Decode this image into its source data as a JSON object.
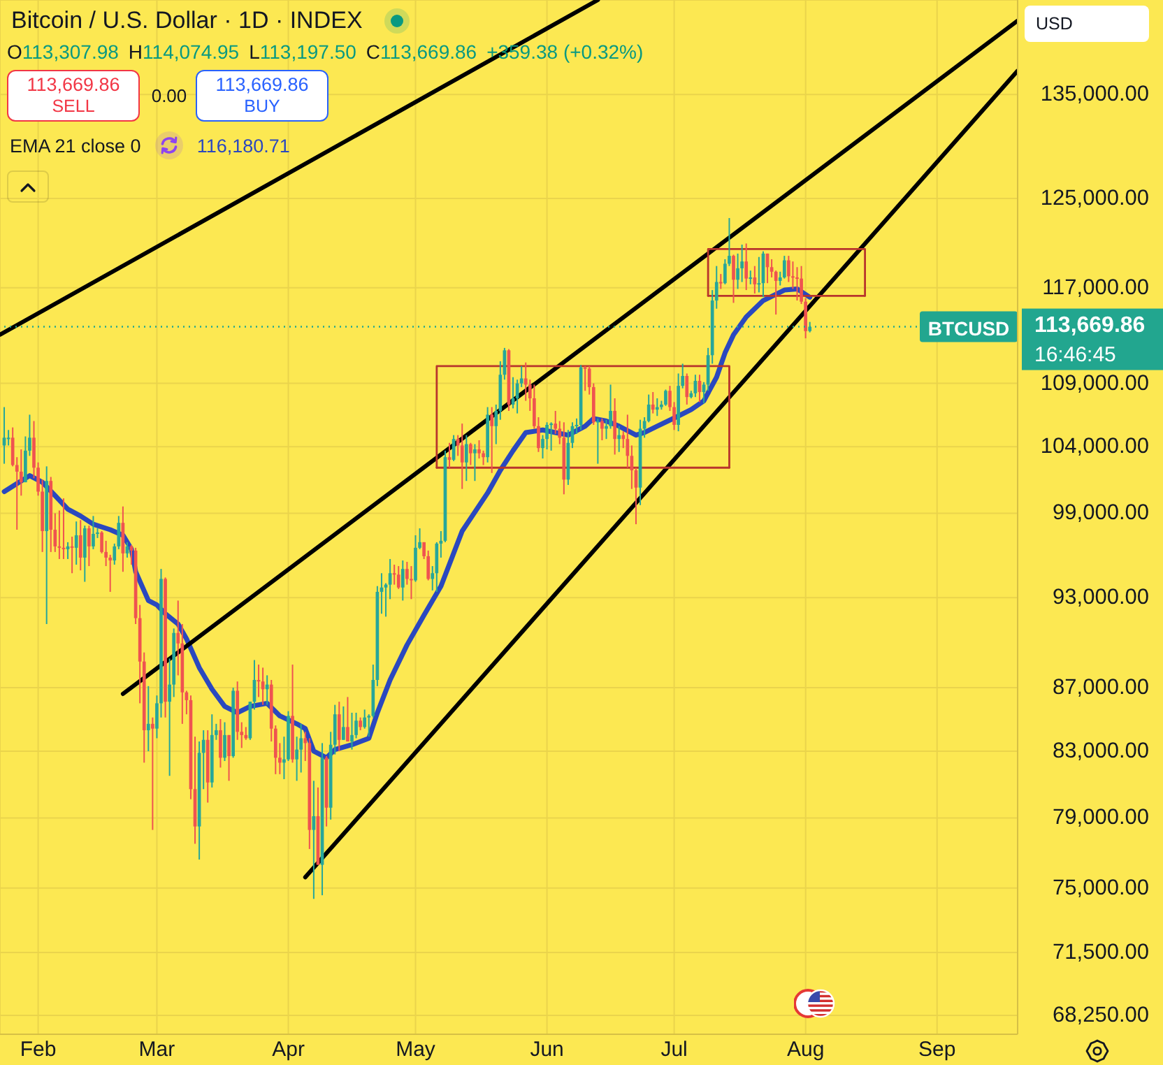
{
  "chart_data": {
    "type": "candlestick",
    "title": "Bitcoin / U.S. Dollar · 1D · INDEX",
    "x": [
      "--01-24",
      "--01-25",
      "--01-26",
      "--01-27",
      "--01-28",
      "--01-29",
      "--01-30",
      "--01-31",
      "--02-01",
      "--02-02",
      "--02-03",
      "--02-04",
      "--02-05",
      "--02-06",
      "--02-07",
      "--02-08",
      "--02-09",
      "--02-10",
      "--02-11",
      "--02-12",
      "--02-13",
      "--02-14",
      "--02-15",
      "--02-16",
      "--02-17",
      "--02-18",
      "--02-19",
      "--02-20",
      "--02-21",
      "--02-22",
      "--02-23",
      "--02-24",
      "--02-25",
      "--02-26",
      "--02-27",
      "--02-28",
      "--03-01",
      "--03-02",
      "--03-03",
      "--03-04",
      "--03-05",
      "--03-06",
      "--03-07",
      "--03-08",
      "--03-09",
      "--03-10",
      "--03-11",
      "--03-12",
      "--03-13",
      "--03-14",
      "--03-15",
      "--03-16",
      "--03-17",
      "--03-18",
      "--03-19",
      "--03-20",
      "--03-21",
      "--03-22",
      "--03-23",
      "--03-24",
      "--03-25",
      "--03-26",
      "--03-27",
      "--03-28",
      "--03-29",
      "--03-30",
      "--03-31",
      "--04-01",
      "--04-02",
      "--04-03",
      "--04-04",
      "--04-05",
      "--04-06",
      "--04-07",
      "--04-08",
      "--04-09",
      "--04-10",
      "--04-11",
      "--04-12",
      "--04-13",
      "--04-14",
      "--04-15",
      "--04-16",
      "--04-17",
      "--04-18",
      "--04-19",
      "--04-20",
      "--04-21",
      "--04-22",
      "--04-23",
      "--04-24",
      "--04-25",
      "--04-26",
      "--04-27",
      "--04-28",
      "--04-29",
      "--04-30",
      "--05-01",
      "--05-02",
      "--05-03",
      "--05-04",
      "--05-05",
      "--05-06",
      "--05-07",
      "--05-08",
      "--05-09",
      "--05-10",
      "--05-11",
      "--05-12",
      "--05-13",
      "--05-14",
      "--05-15",
      "--05-16",
      "--05-17",
      "--05-18",
      "--05-19",
      "--05-20",
      "--05-21",
      "--05-22",
      "--05-23",
      "--05-24",
      "--05-25",
      "--05-26",
      "--05-27",
      "--05-28",
      "--05-29",
      "--05-30",
      "--05-31",
      "--06-01",
      "--06-02",
      "--06-03",
      "--06-04",
      "--06-05",
      "--06-06",
      "--06-07",
      "--06-08",
      "--06-09",
      "--06-10",
      "--06-11",
      "--06-12",
      "--06-13",
      "--06-14",
      "--06-15",
      "--06-16",
      "--06-17",
      "--06-18",
      "--06-19",
      "--06-20",
      "--06-21",
      "--06-22",
      "--06-23",
      "--06-24",
      "--06-25",
      "--06-26",
      "--06-27",
      "--06-28",
      "--06-29",
      "--06-30",
      "--07-01",
      "--07-02",
      "--07-03",
      "--07-04",
      "--07-05",
      "--07-06",
      "--07-07",
      "--07-08",
      "--07-09",
      "--07-10",
      "--07-11",
      "--07-12",
      "--07-13",
      "--07-14",
      "--07-15",
      "--07-16",
      "--07-17",
      "--07-18",
      "--07-19",
      "--07-20",
      "--07-21",
      "--07-22",
      "--07-23",
      "--07-24",
      "--07-25",
      "--07-26",
      "--07-27",
      "--07-28",
      "--07-29",
      "--07-30",
      "--07-31",
      "--08-01",
      "--08-02"
    ],
    "ohlc": [
      [
        104100,
        107100,
        102700,
        104700
      ],
      [
        104700,
        105300,
        104100,
        104700
      ],
      [
        104700,
        105500,
        102500,
        102600
      ],
      [
        102600,
        103200,
        97800,
        102100
      ],
      [
        102100,
        103800,
        100300,
        101300
      ],
      [
        101300,
        104800,
        101300,
        103700
      ],
      [
        103700,
        106500,
        103300,
        104700
      ],
      [
        104700,
        106000,
        101600,
        102400
      ],
      [
        102400,
        102800,
        100300,
        100600
      ],
      [
        100600,
        101500,
        96200,
        97700
      ],
      [
        97700,
        102500,
        91200,
        101400
      ],
      [
        101400,
        101700,
        96200,
        97800
      ],
      [
        97800,
        99000,
        96200,
        96600
      ],
      [
        96600,
        99200,
        95700,
        96500
      ],
      [
        96500,
        100100,
        95700,
        96400
      ],
      [
        96400,
        96900,
        95700,
        96600
      ],
      [
        96600,
        97300,
        94700,
        96500
      ],
      [
        96500,
        98400,
        95300,
        97400
      ],
      [
        97400,
        98500,
        94900,
        95800
      ],
      [
        95800,
        98100,
        94100,
        97900
      ],
      [
        97900,
        98100,
        95200,
        96600
      ],
      [
        96600,
        98800,
        96400,
        97500
      ],
      [
        97500,
        97900,
        97200,
        97600
      ],
      [
        97600,
        97700,
        96100,
        96200
      ],
      [
        96200,
        97000,
        95200,
        95800
      ],
      [
        95800,
        96000,
        93400,
        95600
      ],
      [
        95600,
        96800,
        95300,
        96600
      ],
      [
        96600,
        98800,
        96400,
        98300
      ],
      [
        98300,
        99500,
        94800,
        96100
      ],
      [
        96100,
        96900,
        95800,
        96600
      ],
      [
        96600,
        96700,
        95300,
        96300
      ],
      [
        96300,
        96500,
        91200,
        91600
      ],
      [
        91600,
        92500,
        86000,
        88700
      ],
      [
        88700,
        89300,
        82300,
        84300
      ],
      [
        84300,
        87100,
        83000,
        84700
      ],
      [
        84700,
        85100,
        78300,
        84400
      ],
      [
        84400,
        86500,
        83800,
        86000
      ],
      [
        86000,
        95000,
        85100,
        94300
      ],
      [
        94300,
        94400,
        85100,
        86100
      ],
      [
        86100,
        88900,
        81500,
        87200
      ],
      [
        87200,
        90900,
        86400,
        90600
      ],
      [
        90600,
        92800,
        87800,
        89900
      ],
      [
        89900,
        91200,
        84700,
        86700
      ],
      [
        86700,
        86800,
        85300,
        86200
      ],
      [
        86200,
        86500,
        80100,
        80700
      ],
      [
        80700,
        83900,
        77500,
        78500
      ],
      [
        78500,
        83600,
        76600,
        82900
      ],
      [
        82900,
        84300,
        80700,
        83700
      ],
      [
        83700,
        84300,
        79900,
        81100
      ],
      [
        81100,
        85300,
        80800,
        84000
      ],
      [
        84000,
        84700,
        83700,
        84300
      ],
      [
        84300,
        85000,
        82000,
        82600
      ],
      [
        82600,
        84800,
        82400,
        84000
      ],
      [
        84000,
        84000,
        81200,
        82700
      ],
      [
        82700,
        87000,
        82600,
        86800
      ],
      [
        86800,
        87400,
        83700,
        84200
      ],
      [
        84200,
        84800,
        83200,
        84000
      ],
      [
        84000,
        84500,
        83700,
        83800
      ],
      [
        83800,
        86100,
        83700,
        86100
      ],
      [
        86100,
        88800,
        85600,
        87500
      ],
      [
        87500,
        88500,
        86400,
        87400
      ],
      [
        87400,
        88300,
        85900,
        86900
      ],
      [
        86900,
        87800,
        85900,
        87200
      ],
      [
        87200,
        87500,
        83600,
        84400
      ],
      [
        84400,
        84600,
        81600,
        82600
      ],
      [
        82600,
        83500,
        81600,
        82300
      ],
      [
        82300,
        83900,
        81300,
        82500
      ],
      [
        82500,
        85500,
        82400,
        85200
      ],
      [
        85200,
        88500,
        82300,
        82500
      ],
      [
        82500,
        83900,
        81200,
        83100
      ],
      [
        83100,
        84700,
        81700,
        83800
      ],
      [
        83800,
        84200,
        82400,
        83500
      ],
      [
        83500,
        83800,
        77200,
        78300
      ],
      [
        78300,
        81200,
        74400,
        79100
      ],
      [
        79100,
        80800,
        76300,
        76300
      ],
      [
        76300,
        83500,
        74600,
        82600
      ],
      [
        82600,
        82700,
        78500,
        79600
      ],
      [
        79600,
        84200,
        78900,
        83400
      ],
      [
        83400,
        85900,
        82800,
        85300
      ],
      [
        85300,
        86100,
        83000,
        83700
      ],
      [
        83700,
        85800,
        83700,
        84500
      ],
      [
        84500,
        86400,
        83600,
        83600
      ],
      [
        83600,
        85400,
        83100,
        84000
      ],
      [
        84000,
        85400,
        83800,
        84900
      ],
      [
        84900,
        85100,
        84300,
        84500
      ],
      [
        84500,
        85600,
        84400,
        85100
      ],
      [
        85100,
        85300,
        83900,
        85200
      ],
      [
        85200,
        88500,
        85100,
        87500
      ],
      [
        87500,
        93800,
        87100,
        93400
      ],
      [
        93400,
        94700,
        91900,
        93700
      ],
      [
        93700,
        94000,
        91700,
        93900
      ],
      [
        93900,
        95700,
        92900,
        94700
      ],
      [
        94700,
        95300,
        93900,
        94600
      ],
      [
        94600,
        95200,
        93600,
        93700
      ],
      [
        93700,
        95600,
        92800,
        95000
      ],
      [
        95000,
        95500,
        93900,
        94300
      ],
      [
        94300,
        95200,
        92900,
        94200
      ],
      [
        94200,
        97400,
        94100,
        96500
      ],
      [
        96500,
        97900,
        96400,
        96900
      ],
      [
        96900,
        96900,
        95700,
        95900
      ],
      [
        95900,
        96300,
        94200,
        94300
      ],
      [
        94300,
        95200,
        93500,
        94700
      ],
      [
        94700,
        96900,
        93400,
        96800
      ],
      [
        96800,
        97700,
        95800,
        97000
      ],
      [
        97000,
        103700,
        96900,
        103200
      ],
      [
        103200,
        104300,
        102400,
        103000
      ],
      [
        103000,
        104900,
        102900,
        104600
      ],
      [
        104600,
        104900,
        103300,
        104100
      ],
      [
        104100,
        105800,
        100800,
        102800
      ],
      [
        102800,
        104900,
        101400,
        104200
      ],
      [
        104200,
        104300,
        102600,
        103500
      ],
      [
        103500,
        104200,
        101400,
        103800
      ],
      [
        103800,
        104500,
        103100,
        103500
      ],
      [
        103500,
        103700,
        102600,
        103200
      ],
      [
        103200,
        107100,
        102800,
        106500
      ],
      [
        106500,
        107100,
        102000,
        105600
      ],
      [
        105600,
        107300,
        104200,
        106800
      ],
      [
        106800,
        110800,
        106100,
        109700
      ],
      [
        109700,
        111900,
        109300,
        111700
      ],
      [
        111700,
        111800,
        106800,
        107300
      ],
      [
        107300,
        109500,
        107000,
        107800
      ],
      [
        107800,
        109300,
        106600,
        109000
      ],
      [
        109000,
        110400,
        108700,
        109400
      ],
      [
        109400,
        110700,
        107600,
        108900
      ],
      [
        108900,
        109300,
        106800,
        107800
      ],
      [
        107800,
        108900,
        105400,
        105600
      ],
      [
        105600,
        106300,
        103600,
        103900
      ],
      [
        103900,
        104900,
        103100,
        104600
      ],
      [
        104600,
        105900,
        103800,
        105700
      ],
      [
        105700,
        105900,
        103700,
        105800
      ],
      [
        105800,
        106800,
        105000,
        105400
      ],
      [
        105400,
        106000,
        104200,
        104700
      ],
      [
        104700,
        105900,
        100400,
        101500
      ],
      [
        101500,
        105300,
        101100,
        104300
      ],
      [
        104300,
        105900,
        103900,
        105600
      ],
      [
        105600,
        106200,
        105000,
        105700
      ],
      [
        105700,
        110500,
        105300,
        110300
      ],
      [
        110300,
        110400,
        108400,
        110200
      ],
      [
        110200,
        110400,
        108100,
        108700
      ],
      [
        108700,
        109000,
        105700,
        105900
      ],
      [
        105900,
        106200,
        102700,
        106000
      ],
      [
        106000,
        106200,
        104500,
        105400
      ],
      [
        105400,
        106100,
        104600,
        105600
      ],
      [
        105600,
        108900,
        105400,
        106800
      ],
      [
        106800,
        107800,
        103400,
        104600
      ],
      [
        104600,
        105600,
        103600,
        104900
      ],
      [
        104900,
        105200,
        103900,
        104600
      ],
      [
        104600,
        106500,
        102400,
        103300
      ],
      [
        103300,
        104100,
        100800,
        102200
      ],
      [
        102200,
        102400,
        98200,
        100900
      ],
      [
        100900,
        106100,
        99600,
        105400
      ],
      [
        105400,
        106300,
        104700,
        106000
      ],
      [
        106000,
        108100,
        105900,
        107300
      ],
      [
        107300,
        108300,
        106600,
        106900
      ],
      [
        106900,
        107800,
        106400,
        107100
      ],
      [
        107100,
        107600,
        106900,
        107300
      ],
      [
        107300,
        108500,
        107200,
        108400
      ],
      [
        108400,
        108800,
        106800,
        107100
      ],
      [
        107100,
        107500,
        105300,
        105700
      ],
      [
        105700,
        109800,
        105200,
        108800
      ],
      [
        108800,
        110600,
        108600,
        109600
      ],
      [
        109600,
        109800,
        107300,
        107900
      ],
      [
        107900,
        108400,
        107800,
        108200
      ],
      [
        108200,
        109700,
        107900,
        109200
      ],
      [
        109200,
        109700,
        107500,
        108300
      ],
      [
        108300,
        109100,
        107400,
        108900
      ],
      [
        108900,
        111900,
        108400,
        111300
      ],
      [
        111300,
        116800,
        110600,
        115900
      ],
      [
        115900,
        118900,
        115200,
        117500
      ],
      [
        117500,
        118200,
        116900,
        117400
      ],
      [
        117400,
        119500,
        117300,
        119100
      ],
      [
        119100,
        123200,
        118900,
        119800
      ],
      [
        119800,
        119900,
        115700,
        117700
      ],
      [
        117700,
        120000,
        116900,
        118700
      ],
      [
        118700,
        120800,
        117500,
        119300
      ],
      [
        119300,
        120900,
        116800,
        117800
      ],
      [
        117800,
        118500,
        117300,
        117900
      ],
      [
        117900,
        118900,
        116500,
        117300
      ],
      [
        117300,
        119700,
        116600,
        117400
      ],
      [
        117400,
        120200,
        116200,
        120000
      ],
      [
        120000,
        120000,
        117400,
        118800
      ],
      [
        118800,
        119500,
        117900,
        118400
      ],
      [
        118400,
        118500,
        114700,
        117600
      ],
      [
        117600,
        118400,
        117200,
        117900
      ],
      [
        117900,
        119800,
        117800,
        119400
      ],
      [
        119400,
        119800,
        117500,
        118000
      ],
      [
        118000,
        119300,
        116900,
        117900
      ],
      [
        117900,
        118800,
        115900,
        117800
      ],
      [
        117800,
        118900,
        115600,
        115800
      ],
      [
        115800,
        116100,
        112700,
        113300
      ],
      [
        113307.98,
        114074.95,
        113197.5,
        113669.86
      ]
    ],
    "colors": [
      "#26a69a",
      "#26a69a",
      "#ef5350",
      "#ef5350",
      "#ef5350",
      "#26a69a",
      "#26a69a",
      "#ef5350",
      "#ef5350",
      "#ef5350",
      "#26a69a",
      "#ef5350",
      "#ef5350",
      "#ef5350",
      "#ef5350",
      "#26a69a",
      "#ef5350",
      "#26a69a",
      "#ef5350",
      "#26a69a",
      "#ef5350",
      "#26a69a",
      "#26a69a",
      "#ef5350",
      "#ef5350",
      "#ef5350",
      "#26a69a",
      "#26a69a",
      "#ef5350",
      "#26a69a",
      "#ef5350",
      "#ef5350",
      "#ef5350",
      "#ef5350",
      "#26a69a",
      "#ef5350",
      "#26a69a",
      "#26a69a",
      "#ef5350",
      "#26a69a",
      "#26a69a",
      "#ef5350",
      "#ef5350",
      "#ef5350",
      "#ef5350",
      "#ef5350",
      "#26a69a",
      "#26a69a",
      "#ef5350",
      "#26a69a",
      "#26a69a",
      "#ef5350",
      "#26a69a",
      "#ef5350",
      "#26a69a",
      "#ef5350",
      "#ef5350",
      "#ef5350",
      "#26a69a",
      "#26a69a",
      "#ef5350",
      "#ef5350",
      "#26a69a",
      "#ef5350",
      "#ef5350",
      "#ef5350",
      "#26a69a",
      "#26a69a",
      "#ef5350",
      "#26a69a",
      "#26a69a",
      "#ef5350",
      "#ef5350",
      "#26a69a",
      "#ef5350",
      "#26a69a",
      "#ef5350",
      "#26a69a",
      "#26a69a",
      "#ef5350",
      "#26a69a",
      "#ef5350",
      "#26a69a",
      "#26a69a",
      "#ef5350",
      "#26a69a",
      "#26a69a",
      "#26a69a",
      "#26a69a",
      "#26a69a",
      "#26a69a",
      "#26a69a",
      "#ef5350",
      "#ef5350",
      "#26a69a",
      "#ef5350",
      "#ef5350",
      "#26a69a",
      "#26a69a",
      "#ef5350",
      "#ef5350",
      "#26a69a",
      "#26a69a",
      "#26a69a",
      "#26a69a",
      "#ef5350",
      "#26a69a",
      "#ef5350",
      "#ef5350",
      "#26a69a",
      "#ef5350",
      "#26a69a",
      "#ef5350",
      "#ef5350",
      "#26a69a",
      "#ef5350",
      "#26a69a",
      "#26a69a",
      "#26a69a",
      "#ef5350",
      "#26a69a",
      "#26a69a",
      "#26a69a",
      "#ef5350",
      "#ef5350",
      "#ef5350",
      "#ef5350",
      "#26a69a",
      "#26a69a",
      "#26a69a",
      "#ef5350",
      "#ef5350",
      "#ef5350",
      "#26a69a",
      "#26a69a",
      "#26a69a",
      "#26a69a",
      "#ef5350",
      "#ef5350",
      "#ef5350",
      "#26a69a",
      "#ef5350",
      "#26a69a",
      "#26a69a",
      "#ef5350",
      "#26a69a",
      "#ef5350",
      "#ef5350",
      "#ef5350",
      "#ef5350",
      "#26a69a",
      "#26a69a",
      "#26a69a",
      "#ef5350",
      "#26a69a",
      "#26a69a",
      "#26a69a",
      "#ef5350",
      "#ef5350",
      "#26a69a",
      "#26a69a",
      "#ef5350",
      "#26a69a",
      "#26a69a",
      "#ef5350",
      "#26a69a",
      "#26a69a",
      "#26a69a",
      "#26a69a",
      "#ef5350",
      "#26a69a",
      "#26a69a",
      "#ef5350",
      "#26a69a",
      "#26a69a",
      "#ef5350",
      "#26a69a",
      "#ef5350",
      "#26a69a",
      "#26a69a",
      "#ef5350",
      "#ef5350",
      "#ef5350",
      "#26a69a",
      "#26a69a",
      "#ef5350",
      "#ef5350",
      "#ef5350",
      "#ef5350",
      "#ef5350",
      "#26a69a"
    ],
    "series": [
      {
        "type": "line",
        "color": "#2a48bf",
        "x": [
          "--01-24",
          "--01-27",
          "--01-30",
          "--02-02",
          "--02-05",
          "--02-08",
          "--02-11",
          "--02-14",
          "--02-18",
          "--02-21",
          "--02-23",
          "--02-24",
          "--02-27",
          "--03-01",
          "--03-03",
          "--03-06",
          "--03-08",
          "--03-11",
          "--03-14",
          "--03-17",
          "--03-20",
          "--03-23",
          "--03-27",
          "--03-30",
          "--04-03",
          "--04-05",
          "--04-07",
          "--04-10",
          "--04-12",
          "--04-16",
          "--04-20",
          "--04-22",
          "--04-25",
          "--04-29",
          "--05-03",
          "--05-07",
          "--05-12",
          "--05-18",
          "--05-21",
          "--05-24",
          "--05-27",
          "--05-31",
          "--06-03",
          "--06-06",
          "--06-10",
          "--06-12",
          "--06-15",
          "--06-18",
          "--06-22",
          "--06-24",
          "--06-27",
          "--07-02",
          "--07-05",
          "--07-08",
          "--07-11",
          "--07-13",
          "--07-15",
          "--07-18",
          "--07-22",
          "--07-27",
          "--07-30",
          "--08-02"
        ],
        "values": [
          100600,
          101200,
          101800,
          101300,
          100300,
          99300,
          98800,
          98200,
          97800,
          97400,
          96400,
          94800,
          92800,
          92500,
          91900,
          91200,
          90200,
          88300,
          86900,
          85800,
          85400,
          85800,
          86000,
          85200,
          84700,
          84400,
          83000,
          82600,
          83100,
          83400,
          83800,
          85400,
          87500,
          89800,
          91800,
          93800,
          97700,
          100500,
          102200,
          103700,
          105100,
          105300,
          105100,
          104900,
          105600,
          106200,
          106000,
          105600,
          104900,
          105100,
          105600,
          106400,
          106900,
          107600,
          109500,
          111500,
          113000,
          114500,
          115900,
          116800,
          116900,
          116180.71
        ]
      },
      {
        "type": "line",
        "color": "#000000",
        "x": [
          "--01-23",
          "--06-13"
        ],
        "values": [
          113000,
          144800
        ]
      },
      {
        "type": "line",
        "color": "#000000",
        "x": [
          "--02-21",
          "--09-20"
        ],
        "values": [
          86600,
          142600
        ]
      },
      {
        "type": "line",
        "color": "#000000",
        "x": [
          "--04-05",
          "--09-20"
        ],
        "values": [
          75600,
          137400
        ]
      },
      {
        "type": "line",
        "color": "#b8352c",
        "x": [
          "--05-06",
          "--05-06",
          "--07-14",
          "--07-14"
        ],
        "values": [
          102400,
          110400,
          110400,
          102400
        ]
      },
      {
        "type": "line",
        "color": "#b8352c",
        "x": [
          "--05-06",
          "--07-14"
        ],
        "values": [
          102400,
          102400
        ]
      },
      {
        "type": "line",
        "color": "#b8352c",
        "x": [
          "--07-09",
          "--07-09",
          "--08-15",
          "--08-15"
        ],
        "values": [
          116300,
          120400,
          120400,
          116300
        ]
      },
      {
        "type": "line",
        "color": "#b8352c",
        "x": [
          "--07-09",
          "--08-15"
        ],
        "values": [
          116300,
          116300
        ]
      }
    ],
    "xlim": [
      "--01-23",
      "--09-20"
    ],
    "xticks": [
      {
        "value": "--02-01",
        "label": "Feb"
      },
      {
        "value": "--03-01",
        "label": "Mar"
      },
      {
        "value": "--04-01",
        "label": "Apr"
      },
      {
        "value": "--05-01",
        "label": "May"
      },
      {
        "value": "--06-01",
        "label": "Jun"
      },
      {
        "value": "--07-01",
        "label": "Jul"
      },
      {
        "value": "--08-01",
        "label": "Aug"
      },
      {
        "value": "--09-01",
        "label": "Sep"
      }
    ],
    "ylim": [
      67300,
      144800
    ],
    "yticks": [
      {
        "value": 68250,
        "label": "68,250.00"
      },
      {
        "value": 71500,
        "label": "71,500.00"
      },
      {
        "value": 75000,
        "label": "75,000.00"
      },
      {
        "value": 79000,
        "label": "79,000.00"
      },
      {
        "value": 83000,
        "label": "83,000.00"
      },
      {
        "value": 87000,
        "label": "87,000.00"
      },
      {
        "value": 93000,
        "label": "93,000.00"
      },
      {
        "value": 99000,
        "label": "99,000.00"
      },
      {
        "value": 104000,
        "label": "104,000.00"
      },
      {
        "value": 109000,
        "label": "109,000.00"
      },
      {
        "value": 117000,
        "label": "117,000.00"
      },
      {
        "value": 125000,
        "label": "125,000.00"
      },
      {
        "value": 135000,
        "label": "135,000.00"
      }
    ],
    "log": true,
    "grid": true,
    "ref_lines": [
      {
        "axis": "y",
        "value": 113669.86,
        "label": "BTCUSD",
        "color": "#22a68f",
        "line_style": "dotted"
      }
    ],
    "annotations": [
      "O113,307.98",
      "H114,074.95",
      "L113,197.50",
      "C113,669.86",
      "+359.38 (+0.32%)",
      "113,669.86",
      "SELL",
      "0.00",
      "113,669.86",
      "BUY",
      "EMA 21 close 0",
      "116,180.71",
      "USD",
      "16:46:45"
    ]
  }
}
